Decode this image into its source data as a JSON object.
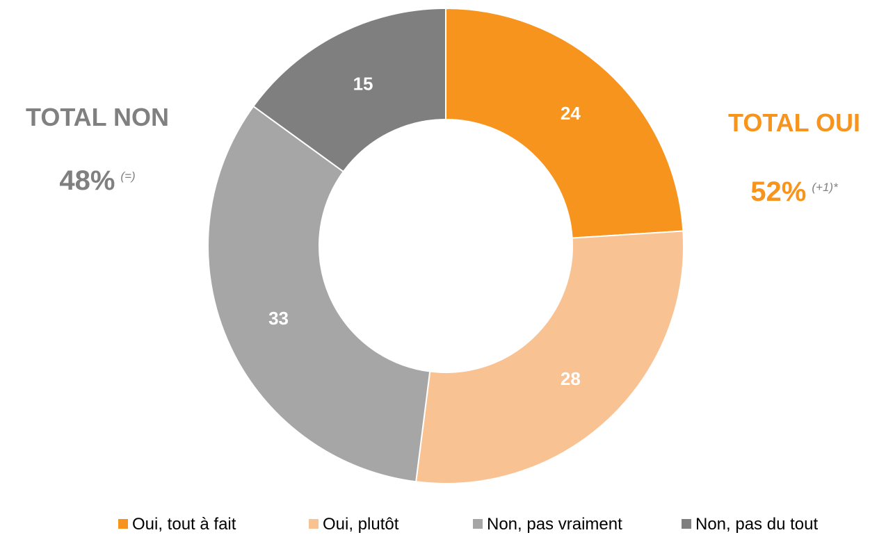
{
  "chart_data": {
    "type": "pie",
    "style": "donut",
    "slices": [
      {
        "label": "Oui, tout à fait",
        "value": 24,
        "color": "#F7941D"
      },
      {
        "label": "Oui, plutôt",
        "value": 28,
        "color": "#F9C293"
      },
      {
        "label": "Non, pas vraiment",
        "value": 33,
        "color": "#A6A6A6"
      },
      {
        "label": "Non, pas du tout",
        "value": 15,
        "color": "#7F7F7F"
      }
    ],
    "data_labels": [
      "24",
      "28",
      "33",
      "15"
    ],
    "legend_position": "bottom"
  },
  "totals": {
    "non": {
      "title": "TOTAL NON",
      "value": "48%",
      "change": "(=)",
      "color": "#808080"
    },
    "oui": {
      "title": "TOTAL OUI",
      "value": "52%",
      "change": "(+1)*",
      "color": "#F7941D"
    }
  },
  "colors": {
    "change_text": "#808080",
    "data_label": "#ffffff"
  }
}
